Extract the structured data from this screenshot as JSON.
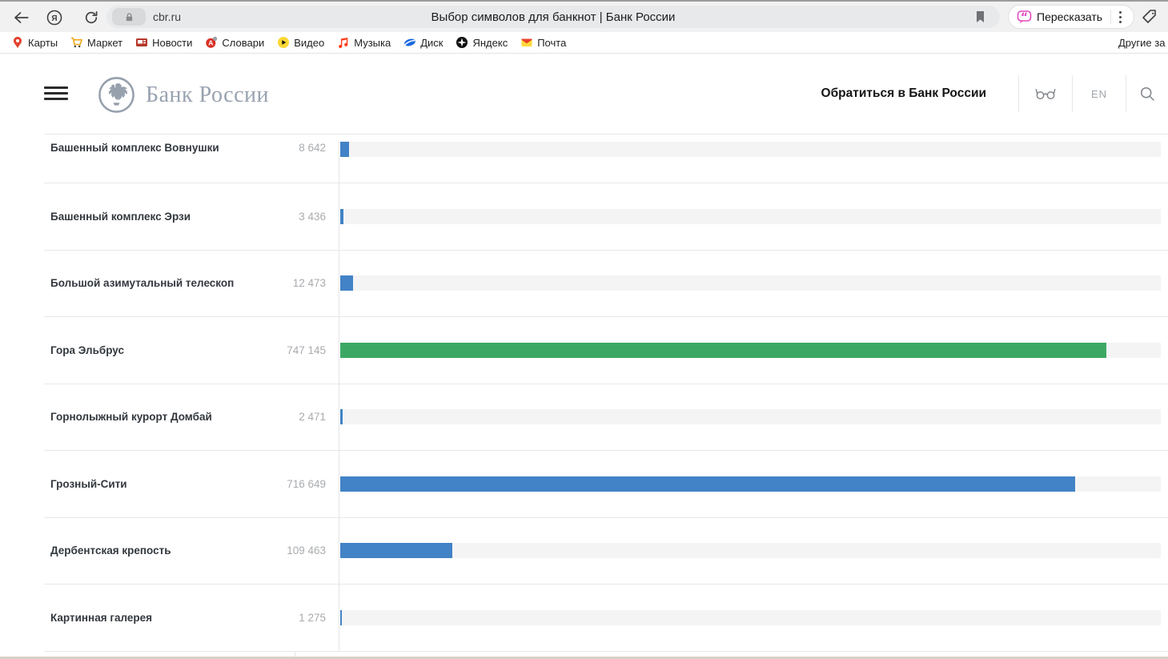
{
  "browser": {
    "url": "cbr.ru",
    "page_title": "Выбор символов для банкнот | Банк России",
    "retell_button": "Пересказать",
    "other_bookmarks": "Другие за",
    "accent_retell_color": "#e24bbf",
    "toolbar_icons": [
      "back-icon",
      "yandex-browser-icon",
      "refresh-icon",
      "lock-icon",
      "bookmark-icon",
      "kebab-menu-icon",
      "collections-icon"
    ],
    "bookmarks": [
      {
        "label": "Карты",
        "icon": "maps-pin-icon",
        "color": "#e3412f"
      },
      {
        "label": "Маркет",
        "icon": "cart-icon",
        "color": "#f0a818"
      },
      {
        "label": "Новости",
        "icon": "news-icon",
        "color": "#b5372a"
      },
      {
        "label": "Словари",
        "icon": "dictionary-icon",
        "color": "#d93025"
      },
      {
        "label": "Видео",
        "icon": "play-icon",
        "color": "#fdd835"
      },
      {
        "label": "Музыка",
        "icon": "music-note-icon",
        "color": "#fc3f1d"
      },
      {
        "label": "Диск",
        "icon": "disk-icon",
        "color": "#1e6ae1"
      },
      {
        "label": "Яндекс",
        "icon": "yandex-star-icon",
        "color": "#111111"
      },
      {
        "label": "Почта",
        "icon": "mail-icon",
        "color": "#ffd93b"
      }
    ]
  },
  "site": {
    "brand": "Банк России",
    "contact_link": "Обратиться в Банк России",
    "lang": "EN",
    "brand_color": "#99a2b0",
    "icons": [
      "menu-icon",
      "cbr-emblem-icon",
      "accessibility-glasses-icon",
      "search-icon"
    ]
  },
  "chart_data": {
    "type": "bar",
    "orientation": "horizontal",
    "categories": [
      "Башенный комплекс Вовнушки",
      "Башенный комплекс Эрзи",
      "Большой азимутальный телескоп",
      "Гора Эльбрус",
      "Горнолыжный курорт Домбай",
      "Грозный-Сити",
      "Дербентская крепость",
      "Картинная галерея"
    ],
    "values": [
      8642,
      3436,
      12473,
      747145,
      2471,
      716649,
      109463,
      1275
    ],
    "value_labels": [
      "8 642",
      "3 436",
      "12 473",
      "747 145",
      "2 471",
      "716 649",
      "109 463",
      "1 275"
    ],
    "bar_colors": [
      "#4282c6",
      "#4282c6",
      "#4282c6",
      "#3da863",
      "#4282c6",
      "#4282c6",
      "#4282c6",
      "#4282c6"
    ],
    "track_color": "#f4f4f5",
    "scale_max": 800000,
    "xlabel": "",
    "ylabel": "",
    "grid": false,
    "legend": false
  }
}
